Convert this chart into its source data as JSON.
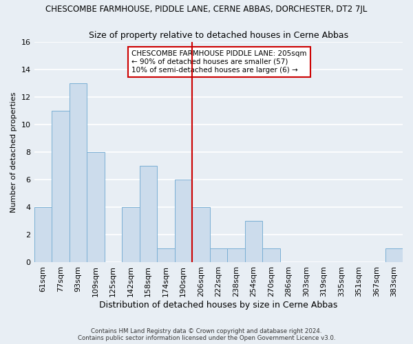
{
  "title": "CHESCOMBE FARMHOUSE, PIDDLE LANE, CERNE ABBAS, DORCHESTER, DT2 7JL",
  "subtitle": "Size of property relative to detached houses in Cerne Abbas",
  "xlabel": "Distribution of detached houses by size in Cerne Abbas",
  "ylabel": "Number of detached properties",
  "footer_line1": "Contains HM Land Registry data © Crown copyright and database right 2024.",
  "footer_line2": "Contains public sector information licensed under the Open Government Licence v3.0.",
  "bin_labels": [
    "61sqm",
    "77sqm",
    "93sqm",
    "109sqm",
    "125sqm",
    "142sqm",
    "158sqm",
    "174sqm",
    "190sqm",
    "206sqm",
    "222sqm",
    "238sqm",
    "254sqm",
    "270sqm",
    "286sqm",
    "303sqm",
    "319sqm",
    "335sqm",
    "351sqm",
    "367sqm",
    "383sqm"
  ],
  "bar_values": [
    4,
    11,
    13,
    8,
    0,
    4,
    7,
    1,
    6,
    4,
    1,
    1,
    3,
    1,
    0,
    0,
    0,
    0,
    0,
    0,
    1
  ],
  "bar_color": "#ccdcec",
  "bar_edge_color": "#7aafd4",
  "vline_x_index": 9,
  "vline_color": "#cc0000",
  "annotation_title": "CHESCOMBE FARMHOUSE PIDDLE LANE: 205sqm",
  "annotation_line1": "← 90% of detached houses are smaller (57)",
  "annotation_line2": "10% of semi-detached houses are larger (6) →",
  "ylim": [
    0,
    16
  ],
  "yticks": [
    0,
    2,
    4,
    6,
    8,
    10,
    12,
    14,
    16
  ],
  "background_color": "#e8eef4",
  "grid_color": "#ffffff"
}
